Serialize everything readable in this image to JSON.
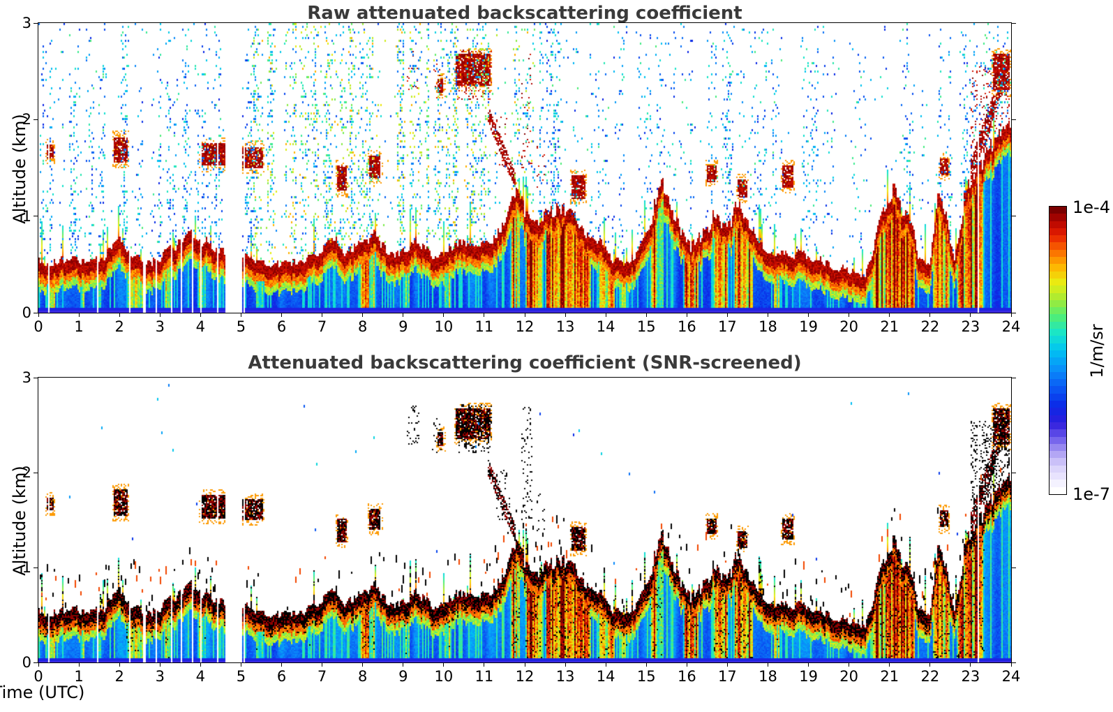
{
  "figure": {
    "panels": [
      {
        "title": "Raw attenuated backscattering coefficient"
      },
      {
        "title": "Attenuated backscattering coefficient (SNR-screened)"
      }
    ],
    "x_label": "Time (UTC)",
    "y_label": "Altitude (km)",
    "colorbar": {
      "max_label": "1e-4",
      "min_label": "1e-7",
      "units": "1/m/sr"
    }
  },
  "chart_data": {
    "type": "heatmap",
    "title_top": "Raw attenuated backscattering coefficient",
    "title_bottom": "Attenuated backscattering coefficient (SNR-screened)",
    "xlabel": "Time (UTC)",
    "ylabel": "Altitude (km)",
    "x_range": [
      0,
      24
    ],
    "y_range": [
      0,
      3
    ],
    "x_ticks": [
      0,
      1,
      2,
      3,
      4,
      5,
      6,
      7,
      8,
      9,
      10,
      11,
      12,
      13,
      14,
      15,
      16,
      17,
      18,
      19,
      20,
      21,
      22,
      23,
      24
    ],
    "y_ticks": [
      0,
      1,
      2,
      3
    ],
    "colorbar": {
      "scale": "log",
      "min": "1e-7",
      "max": "1e-4",
      "units": "1/m/sr",
      "levels": 40,
      "stops": [
        [
          0.0,
          "#ffffff"
        ],
        [
          0.04,
          "#eeeaff"
        ],
        [
          0.09,
          "#d5cdfa"
        ],
        [
          0.14,
          "#a89af2"
        ],
        [
          0.19,
          "#6a58ea"
        ],
        [
          0.24,
          "#2f1ddd"
        ],
        [
          0.3,
          "#0b28e6"
        ],
        [
          0.36,
          "#0a55f2"
        ],
        [
          0.43,
          "#0a8cfa"
        ],
        [
          0.5,
          "#00c3f2"
        ],
        [
          0.56,
          "#17e5cb"
        ],
        [
          0.62,
          "#4fee76"
        ],
        [
          0.68,
          "#a2ea36"
        ],
        [
          0.74,
          "#e9ee12"
        ],
        [
          0.8,
          "#ffb300"
        ],
        [
          0.86,
          "#fa6400"
        ],
        [
          0.91,
          "#e61f00"
        ],
        [
          0.96,
          "#b50500"
        ],
        [
          1.0,
          "#7a0000"
        ]
      ],
      "over_color_screened": "#000000"
    },
    "layer_top_km": [
      [
        0,
        0.52
      ],
      [
        0.4,
        0.5
      ],
      [
        0.8,
        0.55
      ],
      [
        1.2,
        0.5
      ],
      [
        1.6,
        0.55
      ],
      [
        2.0,
        0.72
      ],
      [
        2.3,
        0.6
      ],
      [
        2.7,
        0.48
      ],
      [
        3.0,
        0.55
      ],
      [
        3.4,
        0.68
      ],
      [
        3.8,
        0.78
      ],
      [
        4.1,
        0.72
      ],
      [
        4.5,
        0.62
      ],
      [
        5.1,
        0.6
      ],
      [
        5.6,
        0.5
      ],
      [
        6.0,
        0.48
      ],
      [
        6.5,
        0.52
      ],
      [
        7.0,
        0.62
      ],
      [
        7.3,
        0.72
      ],
      [
        7.6,
        0.58
      ],
      [
        8.0,
        0.72
      ],
      [
        8.3,
        0.78
      ],
      [
        8.7,
        0.58
      ],
      [
        9.0,
        0.62
      ],
      [
        9.3,
        0.72
      ],
      [
        9.7,
        0.58
      ],
      [
        10.0,
        0.62
      ],
      [
        10.4,
        0.72
      ],
      [
        10.8,
        0.65
      ],
      [
        11.1,
        0.72
      ],
      [
        11.4,
        0.8
      ],
      [
        11.65,
        1.05
      ],
      [
        11.8,
        1.32
      ],
      [
        12.0,
        1.05
      ],
      [
        12.3,
        0.92
      ],
      [
        12.6,
        1.02
      ],
      [
        12.9,
        1.08
      ],
      [
        13.2,
        0.95
      ],
      [
        13.5,
        0.82
      ],
      [
        13.9,
        0.68
      ],
      [
        14.2,
        0.52
      ],
      [
        14.5,
        0.48
      ],
      [
        14.8,
        0.6
      ],
      [
        15.1,
        0.85
      ],
      [
        15.35,
        1.38
      ],
      [
        15.6,
        1.05
      ],
      [
        15.9,
        0.8
      ],
      [
        16.1,
        0.68
      ],
      [
        16.4,
        0.78
      ],
      [
        16.7,
        1.0
      ],
      [
        16.95,
        0.85
      ],
      [
        17.25,
        1.08
      ],
      [
        17.55,
        0.85
      ],
      [
        17.8,
        0.68
      ],
      [
        18.1,
        0.62
      ],
      [
        18.6,
        0.58
      ],
      [
        19.0,
        0.58
      ],
      [
        19.4,
        0.5
      ],
      [
        19.8,
        0.44
      ],
      [
        20.1,
        0.4
      ],
      [
        20.4,
        0.34
      ],
      [
        20.65,
        0.75
      ],
      [
        20.9,
        1.1
      ],
      [
        21.1,
        1.25
      ],
      [
        21.35,
        1.0
      ],
      [
        21.55,
        0.88
      ],
      [
        21.75,
        0.5
      ],
      [
        22.0,
        0.52
      ],
      [
        22.2,
        1.28
      ],
      [
        22.45,
        0.85
      ],
      [
        22.6,
        0.5
      ],
      [
        22.85,
        1.15
      ],
      [
        23.1,
        1.45
      ],
      [
        23.4,
        1.6
      ],
      [
        23.7,
        1.8
      ],
      [
        24,
        1.95
      ]
    ],
    "data_gaps_utc": [
      [
        4.62,
        5.02
      ]
    ],
    "gap_lines_utc": [
      0.26,
      1.47,
      2.25,
      2.62,
      2.92,
      3.3,
      3.54,
      3.8,
      4.02,
      4.43,
      5.08,
      23.2
    ],
    "precip_events": [
      [
        0.2,
        0.45,
        0.5
      ],
      [
        1.0,
        1.15,
        0.4
      ],
      [
        1.45,
        1.6,
        0.35
      ],
      [
        2.15,
        2.6,
        0.5
      ],
      [
        3.1,
        3.3,
        0.4
      ],
      [
        3.9,
        4.15,
        0.45
      ],
      [
        5.35,
        5.6,
        0.35
      ],
      [
        6.6,
        6.75,
        0.3
      ],
      [
        7.9,
        8.35,
        0.6
      ],
      [
        9.0,
        9.2,
        0.4
      ],
      [
        10.0,
        10.2,
        0.45
      ],
      [
        11.65,
        11.9,
        0.9
      ],
      [
        12.0,
        12.45,
        0.95
      ],
      [
        12.5,
        13.65,
        0.95
      ],
      [
        13.8,
        14.25,
        0.75
      ],
      [
        14.35,
        14.55,
        0.5
      ],
      [
        15.05,
        15.45,
        0.6
      ],
      [
        15.9,
        16.3,
        0.9
      ],
      [
        16.65,
        17.05,
        0.85
      ],
      [
        17.15,
        17.65,
        0.85
      ],
      [
        18.1,
        18.35,
        0.4
      ],
      [
        20.55,
        21.65,
        0.9
      ],
      [
        22.05,
        22.5,
        0.85
      ],
      [
        22.65,
        23.35,
        0.9
      ]
    ],
    "clouds": [
      [
        0.22,
        0.38,
        1.6,
        1.74
      ],
      [
        1.85,
        2.2,
        1.55,
        1.82
      ],
      [
        4.0,
        4.62,
        1.52,
        1.76
      ],
      [
        5.02,
        5.55,
        1.5,
        1.72
      ],
      [
        7.38,
        7.62,
        1.26,
        1.52
      ],
      [
        8.15,
        8.45,
        1.4,
        1.62
      ],
      [
        9.85,
        10.0,
        2.28,
        2.42
      ],
      [
        10.3,
        11.15,
        2.35,
        2.68
      ],
      [
        13.15,
        13.5,
        1.18,
        1.42
      ],
      [
        16.5,
        16.72,
        1.35,
        1.52
      ],
      [
        17.25,
        17.48,
        1.2,
        1.38
      ],
      [
        18.35,
        18.62,
        1.3,
        1.52
      ],
      [
        22.25,
        22.45,
        1.42,
        1.6
      ],
      [
        23.55,
        23.95,
        2.3,
        2.68
      ]
    ],
    "clouds_tilted": [
      [
        11.1,
        11.78,
        2.05,
        1.35,
        0.09
      ],
      [
        23.0,
        23.6,
        1.45,
        2.2,
        0.12
      ],
      [
        23.3,
        23.85,
        1.7,
        2.5,
        0.08
      ]
    ],
    "black_streak_zones": [
      [
        9.1,
        9.4,
        2.3,
        2.72,
        0.25
      ],
      [
        9.7,
        10.0,
        2.2,
        2.6,
        0.2
      ],
      [
        10.3,
        11.2,
        2.2,
        2.72,
        0.45
      ],
      [
        11.9,
        12.2,
        1.5,
        2.72,
        0.3
      ],
      [
        11.3,
        11.65,
        1.5,
        2.05,
        0.3
      ],
      [
        12.3,
        12.5,
        1.3,
        1.8,
        0.2
      ],
      [
        23.0,
        23.95,
        1.7,
        2.55,
        0.5
      ]
    ],
    "speckle_band_windows": [
      [
        0,
        4.7,
        0.85
      ],
      [
        4.7,
        5.1,
        0.6
      ],
      [
        5.1,
        12.3,
        1.0
      ],
      [
        12.3,
        13.3,
        0.8
      ],
      [
        13.3,
        16.2,
        0.35
      ],
      [
        16.2,
        17.9,
        0.55
      ],
      [
        17.9,
        19.6,
        0.45
      ],
      [
        19.6,
        20.5,
        0.25
      ],
      [
        20.5,
        21.8,
        0.45
      ],
      [
        21.8,
        22.6,
        0.35
      ],
      [
        22.6,
        24,
        0.6
      ]
    ],
    "seed": 42
  }
}
